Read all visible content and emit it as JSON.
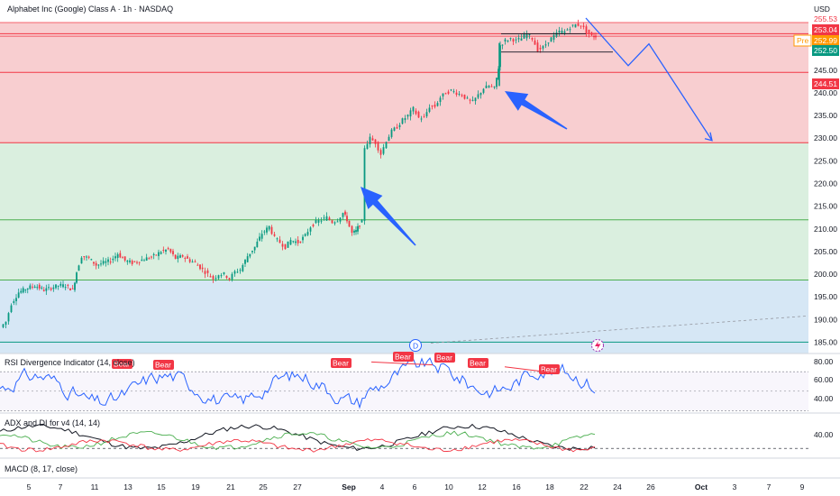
{
  "header": {
    "title": "Alphabet Inc (Google) Class A · 1h · NASDAQ",
    "currency": "USD"
  },
  "price_tags": [
    {
      "label": "253.04",
      "value": 253.04,
      "color": "#f23645"
    },
    {
      "label": "252.99",
      "value": 252.99,
      "color": "#ff9800",
      "prefix": "Pre"
    },
    {
      "label": "252.50",
      "value": 252.5,
      "color": "#089981"
    },
    {
      "label": "244.51",
      "value": 244.51,
      "color": "#f23645"
    }
  ],
  "price_axis_top_partial": "255.53",
  "x_ticks": [
    "5",
    "7",
    "11",
    "13",
    "15",
    "19",
    "21",
    "25",
    "27",
    "Sep",
    "4",
    "6",
    "10",
    "12",
    "16",
    "18",
    "22",
    "24",
    "26",
    "Oct",
    "3",
    "7",
    "9"
  ],
  "indicators": {
    "rsi": {
      "title": "RSI Divergence Indicator (14, close)",
      "ticks": [
        "80.00",
        "60.00",
        "40.00"
      ],
      "bear_label": "Bear"
    },
    "adx": {
      "title": "ADX and DI for v4 (14, 14)",
      "ticks": [
        "40.00"
      ]
    },
    "macd": {
      "title": "MACD (8, 17, close)"
    }
  },
  "marker": {
    "label": "D"
  },
  "colors": {
    "up": "#089981",
    "down": "#f23645",
    "zone_red": "#f7c6c8",
    "zone_green": "#d3ecd9",
    "zone_blue": "#cfe3f3",
    "arrow": "#2962ff"
  },
  "chart_data": {
    "type": "candlestick",
    "ylim": [
      182.5,
      256.5
    ],
    "y_ticks": [
      185,
      190,
      195,
      200,
      205,
      210,
      215,
      220,
      225,
      230,
      235,
      240,
      245,
      250,
      255
    ],
    "horizontal_levels": [
      {
        "value": 253.04,
        "color": "#f23645"
      },
      {
        "value": 244.51,
        "color": "#f23645"
      },
      {
        "value": 229.0,
        "color": "#f23645"
      },
      {
        "value": 212.0,
        "color": "#4caf50"
      },
      {
        "value": 198.7,
        "color": "#4caf50"
      },
      {
        "value": 185.0,
        "color": "#089981"
      }
    ],
    "zones": [
      {
        "from": 229.0,
        "to": 255.5,
        "color": "red"
      },
      {
        "from": 198.7,
        "to": 229.0,
        "color": "green"
      },
      {
        "from": 182.5,
        "to": 198.7,
        "color": "blue"
      }
    ],
    "price_path": [
      [
        2,
        188.3
      ],
      [
        8,
        189.5
      ],
      [
        14,
        193.5
      ],
      [
        22,
        196
      ],
      [
        32,
        197
      ],
      [
        40,
        197.5
      ],
      [
        50,
        196.5
      ],
      [
        58,
        197
      ],
      [
        66,
        197.5
      ],
      [
        74,
        197.5
      ],
      [
        82,
        196.5
      ],
      [
        86,
        200.5
      ],
      [
        92,
        204
      ],
      [
        100,
        203.5
      ],
      [
        108,
        202
      ],
      [
        116,
        202.5
      ],
      [
        124,
        203
      ],
      [
        132,
        204.5
      ],
      [
        140,
        203
      ],
      [
        148,
        202.5
      ],
      [
        156,
        203
      ],
      [
        164,
        203.5
      ],
      [
        172,
        204
      ],
      [
        180,
        205
      ],
      [
        188,
        205.5
      ],
      [
        196,
        203.5
      ],
      [
        204,
        204
      ],
      [
        212,
        203
      ],
      [
        218,
        202.5
      ],
      [
        226,
        201
      ],
      [
        232,
        200
      ],
      [
        238,
        199
      ],
      [
        244,
        200
      ],
      [
        250,
        200
      ],
      [
        256,
        199
      ],
      [
        262,
        200.5
      ],
      [
        268,
        201
      ],
      [
        276,
        204
      ],
      [
        284,
        206
      ],
      [
        292,
        209
      ],
      [
        300,
        210.5
      ],
      [
        306,
        208
      ],
      [
        312,
        207
      ],
      [
        318,
        206
      ],
      [
        324,
        207.5
      ],
      [
        332,
        207
      ],
      [
        340,
        208.5
      ],
      [
        346,
        210.5
      ],
      [
        352,
        211.5
      ],
      [
        358,
        212
      ],
      [
        364,
        212.5
      ],
      [
        370,
        211.5
      ],
      [
        376,
        212
      ],
      [
        382,
        213.5
      ],
      [
        386,
        212
      ],
      [
        392,
        209
      ],
      [
        396,
        209.5
      ],
      [
        400,
        211
      ],
      [
        403,
        211.5
      ],
      [
        406,
        228
      ],
      [
        412,
        230
      ],
      [
        418,
        229
      ],
      [
        424,
        226.5
      ],
      [
        430,
        229.5
      ],
      [
        436,
        231.5
      ],
      [
        442,
        232.5
      ],
      [
        448,
        234
      ],
      [
        454,
        235
      ],
      [
        460,
        236.5
      ],
      [
        466,
        234.5
      ],
      [
        472,
        234.5
      ],
      [
        478,
        237
      ],
      [
        484,
        237
      ],
      [
        490,
        239
      ],
      [
        496,
        240
      ],
      [
        502,
        240.5
      ],
      [
        508,
        240
      ],
      [
        514,
        239.5
      ],
      [
        520,
        238.5
      ],
      [
        526,
        238
      ],
      [
        532,
        239.5
      ],
      [
        538,
        241
      ],
      [
        544,
        241.5
      ],
      [
        550,
        241
      ],
      [
        554,
        245.5
      ],
      [
        556,
        250.5
      ],
      [
        562,
        251.5
      ],
      [
        568,
        252
      ],
      [
        574,
        251.5
      ],
      [
        580,
        252
      ],
      [
        586,
        253
      ],
      [
        592,
        252
      ],
      [
        598,
        249.5
      ],
      [
        604,
        250
      ],
      [
        610,
        251.5
      ],
      [
        616,
        252.5
      ],
      [
        622,
        253.5
      ],
      [
        628,
        253.5
      ],
      [
        634,
        254.5
      ],
      [
        640,
        255
      ],
      [
        646,
        255
      ],
      [
        652,
        253.5
      ],
      [
        658,
        252.5
      ],
      [
        662,
        252.5
      ]
    ],
    "projection": [
      [
        650,
        256.5
      ],
      [
        697,
        246.0
      ],
      [
        720,
        250.8
      ],
      [
        790,
        229.5
      ]
    ],
    "trend_lines": [
      {
        "from": [
          556,
          253.0
        ],
        "to": [
          650,
          253.0
        ]
      },
      {
        "from": [
          556,
          249.0
        ],
        "to": [
          680,
          249.0
        ]
      }
    ]
  }
}
